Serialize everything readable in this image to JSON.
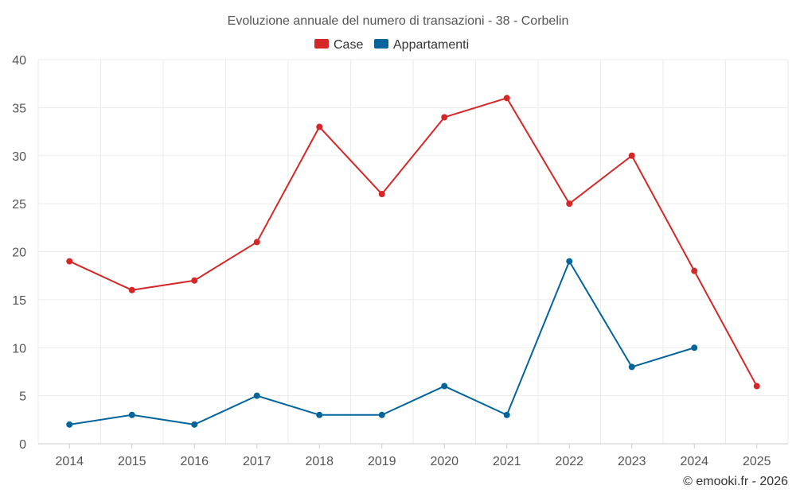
{
  "chart_data": {
    "type": "line",
    "title": "Evoluzione annuale del numero di transazioni - 38 - Corbelin",
    "xlabel": "",
    "ylabel": "",
    "categories": [
      "2014",
      "2015",
      "2016",
      "2017",
      "2018",
      "2019",
      "2020",
      "2021",
      "2022",
      "2023",
      "2024",
      "2025"
    ],
    "ylim": [
      0,
      40
    ],
    "yticks": [
      0,
      5,
      10,
      15,
      20,
      25,
      30,
      35,
      40
    ],
    "grid": true,
    "legend_position": "top-center",
    "series": [
      {
        "name": "Case",
        "color": "#d62728",
        "values": [
          19,
          16,
          17,
          21,
          33,
          26,
          34,
          36,
          25,
          30,
          18,
          6
        ]
      },
      {
        "name": "Appartamenti",
        "color": "#03659b",
        "values": [
          2,
          3,
          2,
          5,
          3,
          3,
          6,
          3,
          19,
          8,
          10,
          null
        ]
      }
    ],
    "credit": "© emooki.fr - 2026"
  }
}
